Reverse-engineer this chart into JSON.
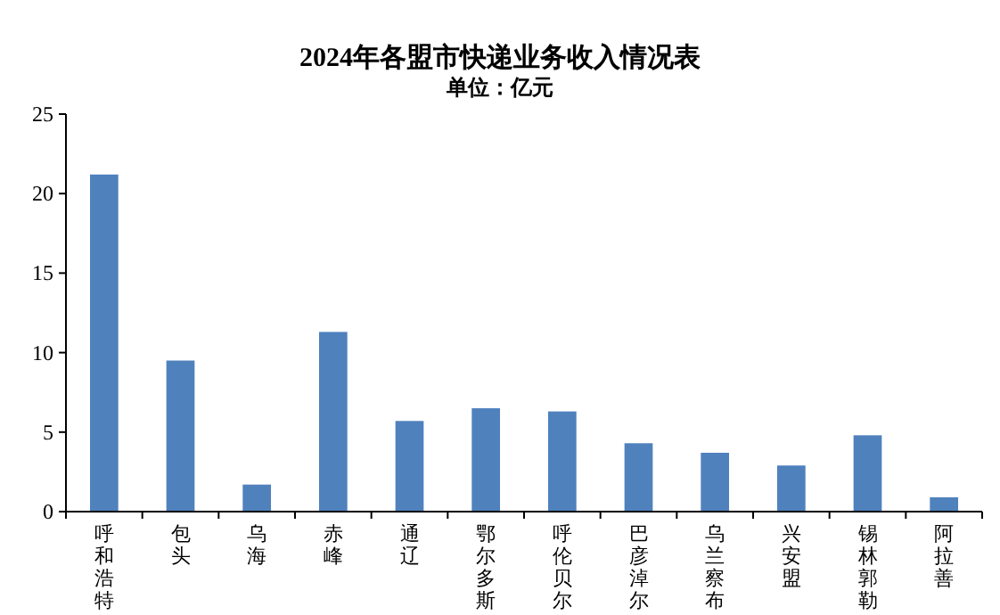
{
  "chart_data": {
    "type": "bar",
    "title": "2024年各盟市快递业务收入情况表",
    "subtitle": "单位：亿元",
    "categories": [
      "呼和浩特",
      "包头",
      "乌海",
      "赤峰",
      "通辽",
      "鄂尔多斯",
      "呼伦贝尔",
      "巴彦淖尔",
      "乌兰察布",
      "兴安盟",
      "锡林郭勒",
      "阿拉善"
    ],
    "values": [
      21.2,
      9.5,
      1.7,
      11.3,
      5.7,
      6.5,
      6.3,
      4.3,
      3.7,
      2.9,
      4.8,
      0.9
    ],
    "color": "#4f81bd",
    "ylim": [
      0,
      25
    ],
    "yticks": [
      0,
      5,
      10,
      15,
      20,
      25
    ],
    "grid": false
  }
}
